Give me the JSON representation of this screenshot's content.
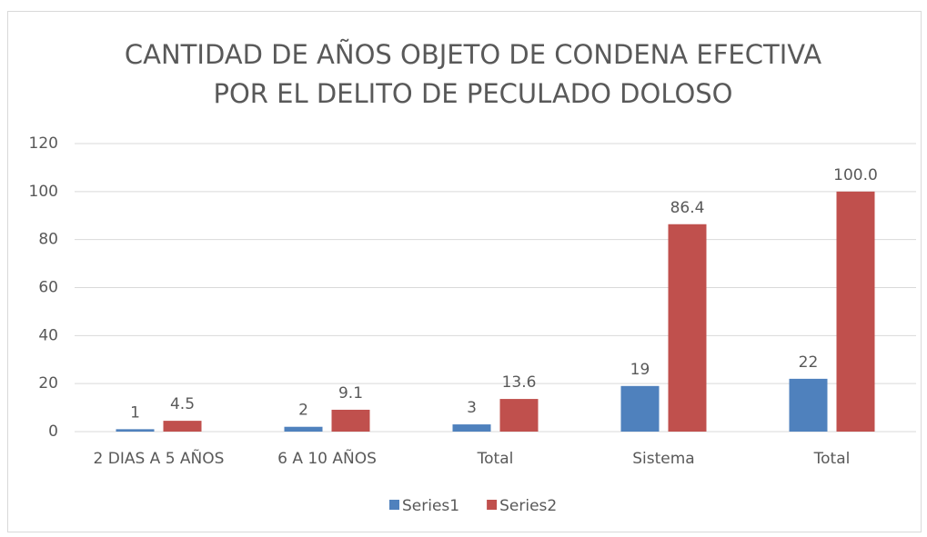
{
  "chart_data": {
    "type": "bar",
    "title": [
      "CANTIDAD DE AÑOS OBJETO DE CONDENA EFECTIVA",
      "POR EL DELITO DE PECULADO DOLOSO"
    ],
    "categories": [
      "2 DIAS A 5 AÑOS",
      "6 A 10 AÑOS",
      "Total",
      "Sistema",
      "Total"
    ],
    "series": [
      {
        "name": "Series1",
        "color": "#4f81bd",
        "values": [
          1,
          2,
          3,
          19,
          22
        ]
      },
      {
        "name": "Series2",
        "color": "#c0504d",
        "values": [
          4.5,
          9.1,
          13.6,
          86.4,
          100
        ],
        "value_labels": [
          "4.5",
          "9.1",
          "13.6",
          "86.4",
          "100.0"
        ]
      }
    ],
    "ylim": [
      0,
      120
    ],
    "yticks": [
      0,
      20,
      40,
      60,
      80,
      100,
      120
    ],
    "grid": true,
    "legend": "bottom"
  }
}
